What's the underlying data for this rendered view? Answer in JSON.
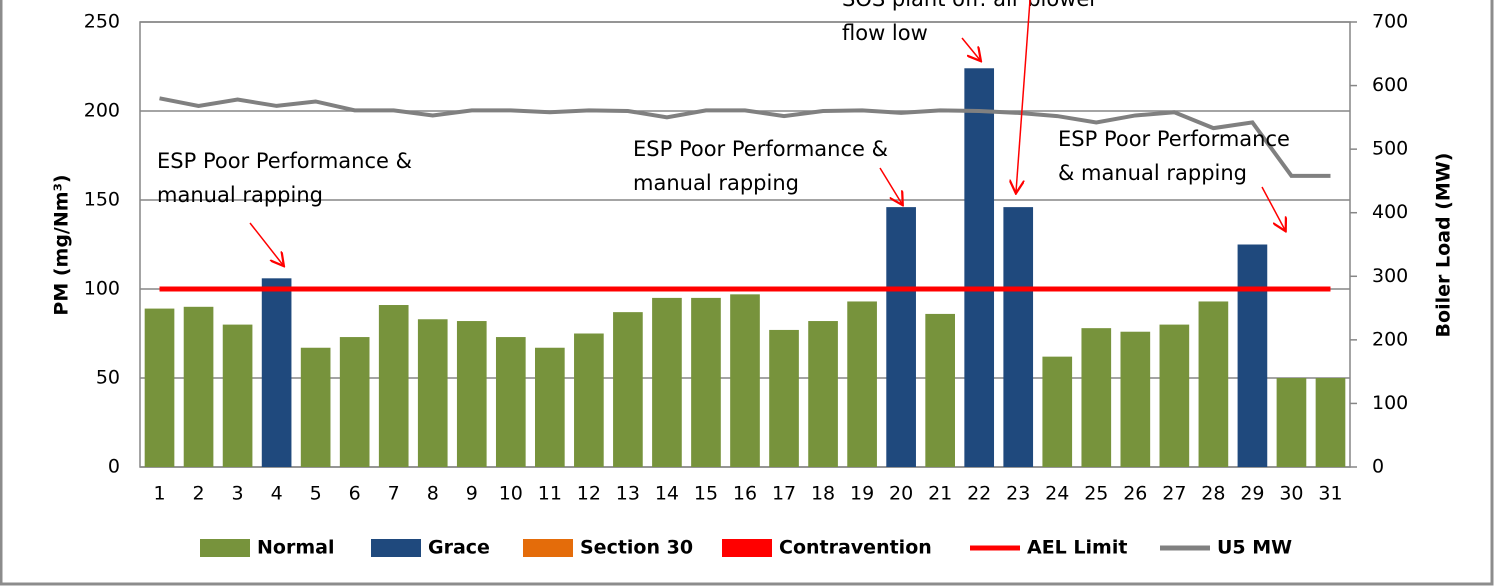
{
  "chart_data": {
    "type": "bar",
    "categories": [
      "1",
      "2",
      "3",
      "4",
      "5",
      "6",
      "7",
      "8",
      "9",
      "10",
      "11",
      "12",
      "13",
      "14",
      "15",
      "16",
      "17",
      "18",
      "19",
      "20",
      "21",
      "22",
      "23",
      "24",
      "25",
      "26",
      "27",
      "28",
      "29",
      "30",
      "31"
    ],
    "series": [
      {
        "name": "Normal",
        "type": "bar",
        "color": "#77933c",
        "values": [
          89,
          90,
          80,
          null,
          67,
          73,
          91,
          83,
          82,
          73,
          67,
          75,
          87,
          95,
          95,
          97,
          77,
          82,
          93,
          null,
          86,
          null,
          null,
          62,
          78,
          76,
          80,
          93,
          null,
          50,
          50
        ]
      },
      {
        "name": "Grace",
        "type": "bar",
        "color": "#1f497d",
        "values": [
          null,
          null,
          null,
          106,
          null,
          null,
          null,
          null,
          null,
          null,
          null,
          null,
          null,
          null,
          null,
          null,
          null,
          null,
          null,
          146,
          null,
          224,
          146,
          null,
          null,
          null,
          null,
          null,
          125,
          null,
          null
        ]
      },
      {
        "name": "Section 30",
        "type": "bar",
        "color": "#e46c0a",
        "values": [
          null,
          null,
          null,
          null,
          null,
          null,
          null,
          null,
          null,
          null,
          null,
          null,
          null,
          null,
          null,
          null,
          null,
          null,
          null,
          null,
          null,
          null,
          null,
          null,
          null,
          null,
          null,
          null,
          null,
          null,
          null
        ]
      },
      {
        "name": "Contravention",
        "type": "bar",
        "color": "#ff0000",
        "values": [
          null,
          null,
          null,
          null,
          null,
          null,
          null,
          null,
          null,
          null,
          null,
          null,
          null,
          null,
          null,
          null,
          null,
          null,
          null,
          null,
          null,
          null,
          null,
          null,
          null,
          null,
          null,
          null,
          null,
          null,
          null
        ]
      },
      {
        "name": "AEL Limit",
        "type": "line",
        "color": "#ff0000",
        "values": [
          100,
          100,
          100,
          100,
          100,
          100,
          100,
          100,
          100,
          100,
          100,
          100,
          100,
          100,
          100,
          100,
          100,
          100,
          100,
          100,
          100,
          100,
          100,
          100,
          100,
          100,
          100,
          100,
          100,
          100,
          100
        ]
      },
      {
        "name": "U5 MW",
        "type": "line",
        "axis": "y2",
        "color": "#808080",
        "values": [
          580,
          568,
          578,
          568,
          575,
          561,
          561,
          553,
          561,
          561,
          558,
          561,
          560,
          550,
          561,
          561,
          552,
          560,
          561,
          557,
          561,
          560,
          557,
          552,
          542,
          553,
          558,
          533,
          542,
          458,
          458
        ]
      }
    ],
    "ylabel": "PM (mg/Nm³)",
    "y2label": "Boiler Load (MW)",
    "ylim": [
      0,
      250
    ],
    "yticks": [
      0,
      50,
      100,
      150,
      200,
      250
    ],
    "y2lim": [
      0,
      700
    ],
    "y2ticks": [
      0,
      100,
      200,
      300,
      400,
      500,
      600,
      700
    ],
    "grid": true,
    "legend": "bottom",
    "annotations": [
      {
        "lines": [
          "ESP Poor Performance &",
          "manual rapping"
        ],
        "color": "#ff0000"
      },
      {
        "lines": [
          "ESP Poor Performance &",
          "manual rapping"
        ],
        "color": "#ff0000"
      },
      {
        "lines": [
          "SOS plant off: air blower",
          "flow low"
        ],
        "color": "#ff0000"
      },
      {
        "lines": [
          "ESP Poor Performance",
          "& manual rapping"
        ],
        "color": "#ff0000"
      }
    ]
  }
}
